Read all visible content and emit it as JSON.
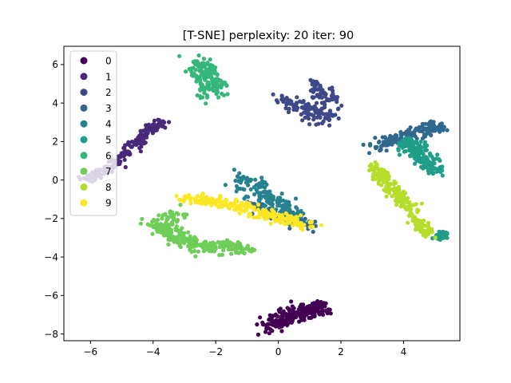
{
  "chart_data": {
    "type": "scatter",
    "title": "[T-SNE] perplexity: 20 iter: 90",
    "xlabel": "",
    "ylabel": "",
    "xlim": [
      -6.85,
      5.8
    ],
    "ylim": [
      -8.35,
      6.95
    ],
    "xticks": [
      -6,
      -4,
      -2,
      0,
      2,
      4
    ],
    "yticks": [
      -8,
      -6,
      -4,
      -2,
      0,
      2,
      4,
      6
    ],
    "grid": false,
    "legend_position": "top-left",
    "series": [
      {
        "name": "0",
        "color": "#440154",
        "clusters": [
          {
            "polyline": [
              [
                -0.4,
                -7.55
              ],
              [
                0.2,
                -7.2
              ],
              [
                0.8,
                -6.9
              ],
              [
                1.5,
                -6.6
              ]
            ],
            "n": 240,
            "spread": 0.2
          }
        ]
      },
      {
        "name": "1",
        "color": "#482878",
        "clusters": [
          {
            "polyline": [
              [
                -6.2,
                0.0
              ],
              [
                -5.4,
                0.6
              ],
              [
                -4.8,
                1.5
              ],
              [
                -4.2,
                2.5
              ],
              [
                -3.7,
                3.0
              ]
            ],
            "n": 180,
            "spread": 0.12
          }
        ]
      },
      {
        "name": "2",
        "color": "#3e4989",
        "clusters": [
          {
            "polyline": [
              [
                0.2,
                4.2
              ],
              [
                0.6,
                3.8
              ],
              [
                1.2,
                3.6
              ],
              [
                1.5,
                3.2
              ]
            ],
            "n": 120,
            "spread": 0.22
          },
          {
            "polyline": [
              [
                1.0,
                5.0
              ],
              [
                1.4,
                4.6
              ],
              [
                1.7,
                4.2
              ]
            ],
            "n": 60,
            "spread": 0.18
          }
        ]
      },
      {
        "name": "3",
        "color": "#31688e",
        "clusters": [
          {
            "polyline": [
              [
                3.0,
                1.7
              ],
              [
                3.8,
                2.1
              ],
              [
                4.5,
                2.5
              ],
              [
                5.1,
                2.8
              ]
            ],
            "n": 160,
            "spread": 0.18
          },
          {
            "polyline": [
              [
                -1.0,
                -1.2
              ],
              [
                -0.3,
                -1.7
              ],
              [
                0.5,
                -2.1
              ],
              [
                1.2,
                -2.4
              ]
            ],
            "n": 90,
            "spread": 0.14
          }
        ]
      },
      {
        "name": "4",
        "color": "#26828e",
        "clusters": [
          {
            "polyline": [
              [
                -1.2,
                0.2
              ],
              [
                -0.6,
                -0.6
              ],
              [
                0.0,
                -1.3
              ],
              [
                0.6,
                -1.9
              ]
            ],
            "n": 160,
            "spread": 0.2
          }
        ]
      },
      {
        "name": "5",
        "color": "#1f9e89",
        "clusters": [
          {
            "polyline": [
              [
                4.1,
                2.0
              ],
              [
                4.4,
                1.4
              ],
              [
                4.8,
                0.9
              ],
              [
                5.1,
                0.4
              ]
            ],
            "n": 150,
            "spread": 0.2
          },
          {
            "polyline": [
              [
                5.05,
                -2.95
              ],
              [
                5.3,
                -2.8
              ]
            ],
            "n": 40,
            "spread": 0.08
          }
        ]
      },
      {
        "name": "6",
        "color": "#35b779",
        "clusters": [
          {
            "polyline": [
              [
                -2.6,
                6.1
              ],
              [
                -2.3,
                5.5
              ],
              [
                -2.0,
                5.0
              ],
              [
                -2.3,
                4.5
              ]
            ],
            "n": 170,
            "spread": 0.22
          }
        ]
      },
      {
        "name": "7",
        "color": "#6ece58",
        "clusters": [
          {
            "polyline": [
              [
                -4.0,
                -2.2
              ],
              [
                -3.4,
                -2.8
              ],
              [
                -2.7,
                -3.3
              ],
              [
                -1.9,
                -3.5
              ],
              [
                -1.0,
                -3.4
              ]
            ],
            "n": 240,
            "spread": 0.2
          },
          {
            "polyline": [
              [
                -3.5,
                -1.6
              ],
              [
                -3.2,
                -2.2
              ]
            ],
            "n": 30,
            "spread": 0.18
          }
        ]
      },
      {
        "name": "8",
        "color": "#b5de2b",
        "clusters": [
          {
            "polyline": [
              [
                3.1,
                0.6
              ],
              [
                3.4,
                0.0
              ],
              [
                3.7,
                -0.6
              ],
              [
                4.1,
                -1.3
              ],
              [
                4.4,
                -2.2
              ],
              [
                4.8,
                -2.8
              ]
            ],
            "n": 200,
            "spread": 0.14
          }
        ]
      },
      {
        "name": "9",
        "color": "#fde725",
        "clusters": [
          {
            "polyline": [
              [
                -3.0,
                -1.0
              ],
              [
                -2.2,
                -1.1
              ],
              [
                -1.3,
                -1.3
              ],
              [
                -0.5,
                -1.7
              ],
              [
                0.3,
                -2.1
              ],
              [
                1.0,
                -2.3
              ]
            ],
            "n": 230,
            "spread": 0.16
          }
        ]
      }
    ]
  }
}
